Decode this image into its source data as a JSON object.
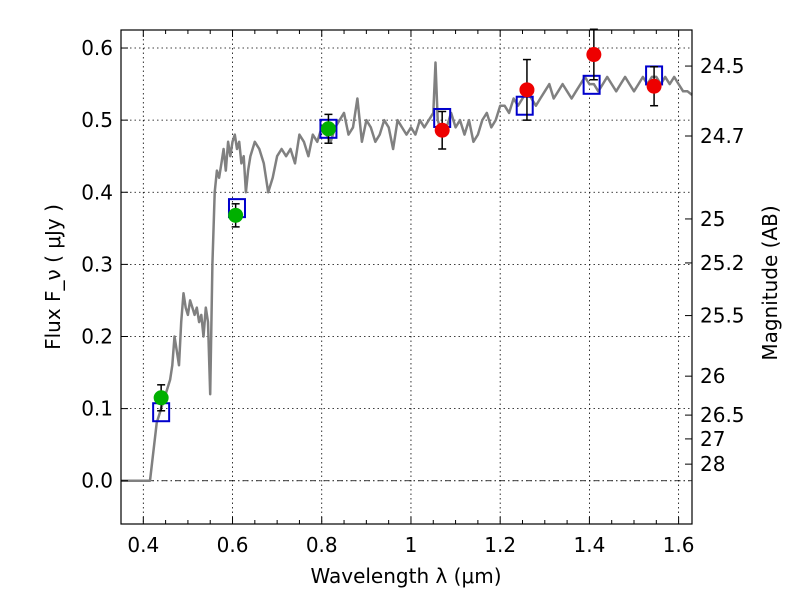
{
  "chart_data": {
    "type": "scatter",
    "xlabel": "Wavelength  λ (μm)",
    "ylabel": "Flux  F_ν  ( μJy )",
    "ylabel_right": "Magnitude (AB)",
    "xlim": [
      0.35,
      1.63
    ],
    "ylim": [
      -0.06,
      0.625
    ],
    "x_ticks": [
      0.4,
      0.6,
      0.8,
      1.0,
      1.2,
      1.4,
      1.6
    ],
    "x_tick_labels": [
      "0.4",
      "0.6",
      "0.8",
      "1",
      "1.2",
      "1.4",
      "1.6"
    ],
    "y_ticks": [
      0.0,
      0.1,
      0.2,
      0.3,
      0.4,
      0.5,
      0.6
    ],
    "y_tick_labels": [
      "0.0",
      "0.1",
      "0.2",
      "0.3",
      "0.4",
      "0.5",
      "0.6"
    ],
    "right_ticks": [
      {
        "label": "24.5",
        "flux": 0.575
      },
      {
        "label": "24.7",
        "flux": 0.478
      },
      {
        "label": "25",
        "flux": 0.363
      },
      {
        "label": "25.2",
        "flux": 0.302
      },
      {
        "label": "25.5",
        "flux": 0.229
      },
      {
        "label": "26",
        "flux": 0.145
      },
      {
        "label": "26.5",
        "flux": 0.091
      },
      {
        "label": "27",
        "flux": 0.058
      },
      {
        "label": "28",
        "flux": 0.023
      }
    ],
    "grid": true,
    "colors": {
      "template": "#808080",
      "model_box": "#0000cc",
      "obs_green": "#00b000",
      "obs_red": "#ee0000",
      "errorbar": "#000000"
    },
    "template_spectrum": {
      "x": [
        0.35,
        0.41,
        0.415,
        0.43,
        0.44,
        0.45,
        0.46,
        0.465,
        0.47,
        0.475,
        0.48,
        0.485,
        0.49,
        0.495,
        0.5,
        0.505,
        0.51,
        0.515,
        0.52,
        0.525,
        0.53,
        0.535,
        0.54,
        0.545,
        0.55,
        0.555,
        0.56,
        0.565,
        0.57,
        0.575,
        0.58,
        0.585,
        0.59,
        0.595,
        0.6,
        0.605,
        0.61,
        0.615,
        0.62,
        0.625,
        0.63,
        0.635,
        0.64,
        0.65,
        0.66,
        0.67,
        0.68,
        0.69,
        0.7,
        0.71,
        0.72,
        0.73,
        0.74,
        0.75,
        0.76,
        0.77,
        0.78,
        0.79,
        0.8,
        0.81,
        0.82,
        0.83,
        0.84,
        0.85,
        0.86,
        0.87,
        0.88,
        0.89,
        0.9,
        0.91,
        0.92,
        0.93,
        0.94,
        0.95,
        0.96,
        0.97,
        0.98,
        0.99,
        1.0,
        1.01,
        1.02,
        1.03,
        1.04,
        1.05,
        1.055,
        1.06,
        1.065,
        1.07,
        1.08,
        1.09,
        1.1,
        1.11,
        1.12,
        1.13,
        1.14,
        1.15,
        1.16,
        1.17,
        1.18,
        1.19,
        1.2,
        1.21,
        1.22,
        1.23,
        1.24,
        1.25,
        1.26,
        1.27,
        1.28,
        1.29,
        1.3,
        1.31,
        1.32,
        1.33,
        1.34,
        1.35,
        1.36,
        1.37,
        1.38,
        1.39,
        1.4,
        1.41,
        1.42,
        1.43,
        1.44,
        1.45,
        1.46,
        1.47,
        1.48,
        1.49,
        1.5,
        1.51,
        1.52,
        1.53,
        1.54,
        1.55,
        1.56,
        1.57,
        1.58,
        1.59,
        1.6,
        1.61,
        1.62,
        1.63
      ],
      "y": [
        0.0,
        0.0,
        0.0,
        0.08,
        0.1,
        0.12,
        0.14,
        0.16,
        0.2,
        0.18,
        0.16,
        0.22,
        0.26,
        0.24,
        0.23,
        0.25,
        0.24,
        0.23,
        0.24,
        0.22,
        0.23,
        0.2,
        0.24,
        0.22,
        0.12,
        0.3,
        0.4,
        0.43,
        0.42,
        0.44,
        0.46,
        0.43,
        0.47,
        0.45,
        0.47,
        0.48,
        0.46,
        0.47,
        0.44,
        0.45,
        0.4,
        0.43,
        0.45,
        0.47,
        0.46,
        0.44,
        0.4,
        0.42,
        0.45,
        0.46,
        0.45,
        0.46,
        0.44,
        0.48,
        0.47,
        0.45,
        0.48,
        0.47,
        0.49,
        0.48,
        0.47,
        0.49,
        0.5,
        0.51,
        0.48,
        0.49,
        0.53,
        0.47,
        0.5,
        0.49,
        0.47,
        0.48,
        0.5,
        0.49,
        0.46,
        0.5,
        0.49,
        0.48,
        0.49,
        0.48,
        0.5,
        0.49,
        0.5,
        0.51,
        0.58,
        0.5,
        0.49,
        0.48,
        0.49,
        0.51,
        0.49,
        0.5,
        0.48,
        0.5,
        0.47,
        0.48,
        0.5,
        0.51,
        0.49,
        0.5,
        0.52,
        0.52,
        0.51,
        0.53,
        0.52,
        0.53,
        0.54,
        0.53,
        0.52,
        0.53,
        0.54,
        0.55,
        0.53,
        0.54,
        0.55,
        0.54,
        0.53,
        0.54,
        0.55,
        0.56,
        0.55,
        0.55,
        0.54,
        0.55,
        0.56,
        0.55,
        0.54,
        0.55,
        0.56,
        0.55,
        0.54,
        0.55,
        0.56,
        0.55,
        0.56,
        0.56,
        0.55,
        0.56,
        0.55,
        0.56,
        0.55,
        0.54,
        0.54,
        0.535
      ]
    },
    "model_points": [
      {
        "x": 0.44,
        "y": 0.095
      },
      {
        "x": 0.61,
        "y": 0.378
      },
      {
        "x": 0.815,
        "y": 0.488
      },
      {
        "x": 1.07,
        "y": 0.503
      },
      {
        "x": 1.255,
        "y": 0.52
      },
      {
        "x": 1.405,
        "y": 0.549
      },
      {
        "x": 1.545,
        "y": 0.562
      }
    ],
    "observed_points": [
      {
        "x": 0.44,
        "y": 0.115,
        "err": 0.018,
        "color": "green"
      },
      {
        "x": 0.607,
        "y": 0.368,
        "err": 0.016,
        "color": "green"
      },
      {
        "x": 0.815,
        "y": 0.488,
        "err": 0.02,
        "color": "green"
      },
      {
        "x": 1.07,
        "y": 0.486,
        "err": 0.026,
        "color": "red"
      },
      {
        "x": 1.26,
        "y": 0.542,
        "err": 0.042,
        "color": "red"
      },
      {
        "x": 1.41,
        "y": 0.591,
        "err": 0.035,
        "color": "red"
      },
      {
        "x": 1.545,
        "y": 0.547,
        "err": 0.027,
        "color": "red"
      }
    ]
  }
}
